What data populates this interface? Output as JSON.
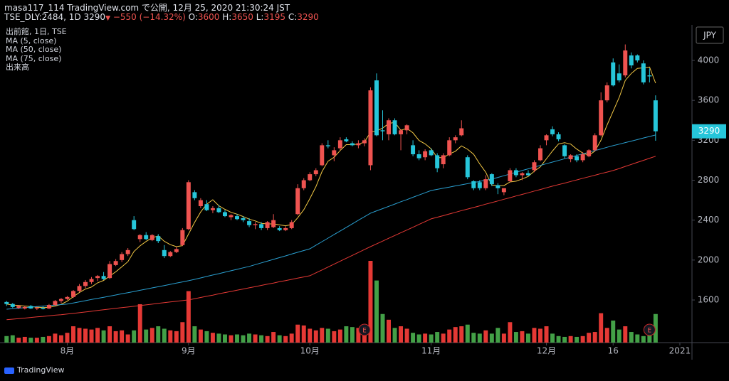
{
  "header": {
    "author": "masa117_114 TradingView.com で公開, 12月 25, 2020 21:30:24 JST",
    "symbol": "TSE_DLY:2484, 1D",
    "direction": "▼",
    "change": "−550 (−14.32%)",
    "ohlc_labels": [
      "O:",
      "H:",
      "L:",
      "C:"
    ]
  },
  "footer": {
    "logo": "TradingView"
  },
  "chart_data": {
    "type": "candlestick",
    "title": "出前館, 1日, TSE",
    "currency": "JPY",
    "grid": false,
    "up_color": "#ef5350",
    "down_color": "#26c6da",
    "ohlc": [
      [
        1580,
        1590,
        1540,
        1560
      ],
      [
        1560,
        1570,
        1520,
        1530
      ],
      [
        1520,
        1550,
        1510,
        1540
      ],
      [
        1515,
        1540,
        1505,
        1530
      ],
      [
        1540,
        1550,
        1510,
        1515
      ],
      [
        1515,
        1530,
        1500,
        1525
      ],
      [
        1520,
        1540,
        1505,
        1510
      ],
      [
        1515,
        1560,
        1510,
        1550
      ],
      [
        1550,
        1600,
        1540,
        1590
      ],
      [
        1590,
        1620,
        1570,
        1610
      ],
      [
        1610,
        1640,
        1600,
        1630
      ],
      [
        1630,
        1700,
        1620,
        1690
      ],
      [
        1690,
        1760,
        1680,
        1740
      ],
      [
        1740,
        1800,
        1720,
        1780
      ],
      [
        1780,
        1830,
        1760,
        1810
      ],
      [
        1820,
        1850,
        1790,
        1840
      ],
      [
        1840,
        1880,
        1800,
        1810
      ],
      [
        1820,
        1990,
        1810,
        1960
      ],
      [
        1950,
        2010,
        1940,
        1990
      ],
      [
        2000,
        2080,
        1980,
        2060
      ],
      [
        2060,
        2120,
        2040,
        2100
      ],
      [
        2400,
        2440,
        2300,
        2310
      ],
      [
        2210,
        2260,
        2180,
        2250
      ],
      [
        2250,
        2280,
        2200,
        2210
      ],
      [
        2200,
        2260,
        2190,
        2250
      ],
      [
        2240,
        2260,
        2170,
        2190
      ],
      [
        2100,
        2150,
        2020,
        2040
      ],
      [
        2040,
        2090,
        2030,
        2080
      ],
      [
        2080,
        2130,
        2070,
        2110
      ],
      [
        2150,
        2320,
        2140,
        2300
      ],
      [
        2310,
        2800,
        2300,
        2780
      ],
      [
        2680,
        2700,
        2600,
        2620
      ],
      [
        2540,
        2620,
        2520,
        2600
      ],
      [
        2560,
        2600,
        2490,
        2500
      ],
      [
        2500,
        2540,
        2470,
        2520
      ],
      [
        2520,
        2550,
        2470,
        2480
      ],
      [
        2480,
        2500,
        2430,
        2440
      ],
      [
        2430,
        2460,
        2400,
        2450
      ],
      [
        2440,
        2460,
        2400,
        2410
      ],
      [
        2420,
        2440,
        2380,
        2400
      ],
      [
        2390,
        2420,
        2330,
        2350
      ],
      [
        2350,
        2380,
        2310,
        2360
      ],
      [
        2360,
        2380,
        2300,
        2320
      ],
      [
        2320,
        2390,
        2300,
        2380
      ],
      [
        2330,
        2460,
        2320,
        2400
      ],
      [
        2320,
        2340,
        2290,
        2300
      ],
      [
        2300,
        2340,
        2290,
        2320
      ],
      [
        2320,
        2400,
        2310,
        2380
      ],
      [
        2460,
        2760,
        2450,
        2720
      ],
      [
        2720,
        2820,
        2700,
        2800
      ],
      [
        2800,
        2880,
        2790,
        2860
      ],
      [
        2860,
        2920,
        2840,
        2900
      ],
      [
        2950,
        3170,
        2940,
        3150
      ],
      [
        3150,
        3200,
        3120,
        3140
      ],
      [
        3050,
        3130,
        2990,
        3100
      ],
      [
        3120,
        3230,
        3100,
        3200
      ],
      [
        3210,
        3230,
        3180,
        3190
      ],
      [
        3170,
        3190,
        3140,
        3150
      ],
      [
        3150,
        3200,
        3120,
        3170
      ],
      [
        3170,
        3220,
        3140,
        3200
      ],
      [
        2950,
        3730,
        2900,
        3700
      ],
      [
        3800,
        3870,
        3240,
        3250
      ],
      [
        3300,
        3500,
        3200,
        3290
      ],
      [
        3260,
        3420,
        3200,
        3400
      ],
      [
        3400,
        3420,
        3250,
        3260
      ],
      [
        3260,
        3310,
        3100,
        3300
      ],
      [
        3300,
        3360,
        3260,
        3350
      ],
      [
        3150,
        3200,
        3040,
        3060
      ],
      [
        3060,
        3100,
        3000,
        3020
      ],
      [
        3030,
        3110,
        3000,
        3090
      ],
      [
        3100,
        3120,
        3040,
        3050
      ],
      [
        3050,
        3070,
        2880,
        2920
      ],
      [
        2960,
        3070,
        2920,
        3050
      ],
      [
        3050,
        3230,
        3040,
        3200
      ],
      [
        3200,
        3250,
        3170,
        3230
      ],
      [
        3250,
        3400,
        3240,
        3320
      ],
      [
        3030,
        3050,
        2810,
        2830
      ],
      [
        2790,
        2800,
        2700,
        2720
      ],
      [
        2780,
        2800,
        2700,
        2720
      ],
      [
        2720,
        2850,
        2700,
        2810
      ],
      [
        2860,
        2870,
        2740,
        2760
      ],
      [
        2750,
        2770,
        2660,
        2720
      ],
      [
        2680,
        2720,
        2650,
        2720
      ],
      [
        2790,
        2920,
        2780,
        2900
      ],
      [
        2900,
        2920,
        2830,
        2850
      ],
      [
        2850,
        2880,
        2800,
        2870
      ],
      [
        2870,
        2900,
        2840,
        2850
      ],
      [
        2900,
        3000,
        2880,
        2980
      ],
      [
        3000,
        3150,
        2990,
        3120
      ],
      [
        3200,
        3260,
        3150,
        3250
      ],
      [
        3310,
        3340,
        3240,
        3260
      ],
      [
        3260,
        3280,
        3190,
        3210
      ],
      [
        3150,
        3160,
        3020,
        3040
      ],
      [
        3010,
        3060,
        2980,
        3050
      ],
      [
        3040,
        3060,
        2980,
        3000
      ],
      [
        3000,
        3080,
        2980,
        3060
      ],
      [
        3040,
        3110,
        3030,
        3100
      ],
      [
        3100,
        3270,
        3090,
        3250
      ],
      [
        3250,
        3680,
        3240,
        3600
      ],
      [
        3600,
        3780,
        3580,
        3750
      ],
      [
        3980,
        4020,
        3740,
        3750
      ],
      [
        3870,
        3960,
        3780,
        3800
      ],
      [
        3850,
        4160,
        3830,
        4100
      ],
      [
        4050,
        4080,
        3920,
        3950
      ],
      [
        4050,
        4060,
        3980,
        4000
      ],
      [
        3970,
        4000,
        3760,
        3780
      ],
      [
        3850,
        3920,
        3780,
        3840
      ],
      [
        3600,
        3650,
        3195,
        3290
      ]
    ],
    "volume": {
      "name": "出来高",
      "up_color": "#e53935",
      "down_color": "#43a047",
      "ylim": [
        0,
        1000
      ],
      "values": [
        80,
        90,
        60,
        70,
        60,
        60,
        70,
        80,
        110,
        90,
        120,
        200,
        180,
        170,
        160,
        180,
        150,
        200,
        140,
        150,
        100,
        150,
        470,
        160,
        180,
        200,
        170,
        150,
        140,
        250,
        630,
        200,
        160,
        140,
        120,
        110,
        100,
        90,
        100,
        90,
        110,
        100,
        90,
        80,
        130,
        90,
        80,
        110,
        220,
        210,
        170,
        150,
        180,
        170,
        140,
        160,
        200,
        190,
        180,
        120,
        1000,
        760,
        350,
        280,
        180,
        200,
        170,
        120,
        100,
        110,
        100,
        130,
        110,
        160,
        190,
        200,
        220,
        120,
        110,
        150,
        110,
        180,
        110,
        250,
        130,
        140,
        110,
        180,
        170,
        200,
        110,
        80,
        70,
        80,
        70,
        80,
        120,
        130,
        360,
        180,
        270,
        160,
        200,
        130,
        100,
        80,
        90,
        350
      ]
    },
    "series": [
      {
        "name": "MA (5, close)",
        "color": "#f2c744",
        "values": [
          1560,
          1550,
          1545,
          1540,
          1535,
          1528,
          1524,
          1526,
          1538,
          1557,
          1588,
          1634,
          1674,
          1710,
          1730,
          1772,
          1796,
          1840,
          1882,
          1932,
          1984,
          2086,
          2142,
          2186,
          2224,
          2242,
          2188,
          2154,
          2134,
          2144,
          2262,
          2378,
          2482,
          2560,
          2604,
          2544,
          2508,
          2478,
          2460,
          2436,
          2410,
          2392,
          2368,
          2362,
          2362,
          2352,
          2344,
          2356,
          2424,
          2504,
          2616,
          2736,
          2886,
          2990,
          3030,
          3098,
          3156,
          3156,
          3162,
          3182,
          3282,
          3294,
          3322,
          3368,
          3380,
          3300,
          3320,
          3274,
          3198,
          3164,
          3114,
          3026,
          3026,
          3062,
          3090,
          3144,
          3110,
          3060,
          2964,
          2880,
          2752,
          2746,
          2746,
          2782,
          2790,
          2812,
          2838,
          2890,
          2934,
          3014,
          3092,
          3164,
          3176,
          3162,
          3112,
          3072,
          3050,
          3092,
          3202,
          3352,
          3490,
          3630,
          3800,
          3870,
          3920,
          3926,
          3934,
          3772
        ]
      },
      {
        "name": "MA (50, close)",
        "color": "#2a9fd0",
        "values": [
          1508,
          1513,
          1518,
          1523,
          1528,
          1534,
          1539,
          1544,
          1549,
          1554,
          1559,
          1570,
          1582,
          1593,
          1605,
          1616,
          1627,
          1639,
          1650,
          1662,
          1673,
          1685,
          1697,
          1709,
          1721,
          1733,
          1745,
          1757,
          1769,
          1781,
          1793,
          1807,
          1821,
          1836,
          1850,
          1864,
          1879,
          1893,
          1907,
          1922,
          1936,
          1954,
          1972,
          1989,
          2007,
          2025,
          2042,
          2060,
          2078,
          2095,
          2113,
          2149,
          2184,
          2220,
          2256,
          2292,
          2327,
          2363,
          2399,
          2434,
          2470,
          2493,
          2515,
          2538,
          2561,
          2584,
          2606,
          2629,
          2652,
          2674,
          2697,
          2708,
          2720,
          2731,
          2743,
          2754,
          2765,
          2777,
          2788,
          2800,
          2811,
          2828,
          2845,
          2862,
          2879,
          2897,
          2914,
          2931,
          2948,
          2965,
          2982,
          2998,
          3015,
          3031,
          3048,
          3064,
          3080,
          3097,
          3113,
          3130,
          3146,
          3161,
          3177,
          3192,
          3207,
          3223,
          3238,
          3253
        ]
      },
      {
        "name": "MA (75, close)",
        "color": "#e53935",
        "values": [
          1402,
          1408,
          1413,
          1419,
          1425,
          1431,
          1436,
          1442,
          1448,
          1453,
          1459,
          1466,
          1473,
          1480,
          1487,
          1495,
          1502,
          1509,
          1516,
          1523,
          1530,
          1537,
          1544,
          1551,
          1558,
          1566,
          1573,
          1580,
          1587,
          1594,
          1601,
          1613,
          1625,
          1637,
          1649,
          1662,
          1674,
          1686,
          1698,
          1710,
          1722,
          1734,
          1746,
          1758,
          1770,
          1783,
          1795,
          1807,
          1819,
          1831,
          1843,
          1872,
          1901,
          1930,
          1959,
          1989,
          2018,
          2047,
          2076,
          2105,
          2134,
          2162,
          2190,
          2218,
          2246,
          2274,
          2301,
          2329,
          2357,
          2385,
          2413,
          2429,
          2445,
          2462,
          2478,
          2495,
          2511,
          2527,
          2543,
          2560,
          2576,
          2592,
          2609,
          2625,
          2642,
          2658,
          2674,
          2691,
          2707,
          2724,
          2740,
          2756,
          2771,
          2787,
          2803,
          2819,
          2834,
          2850,
          2866,
          2881,
          2897,
          2917,
          2938,
          2958,
          2979,
          2999,
          3020,
          3040
        ]
      }
    ],
    "earnings": {
      "label": "E",
      "indices": [
        59,
        106
      ]
    },
    "xlim": [
      -0.5,
      113
    ],
    "xticks": [
      {
        "value": 10,
        "label": "8月"
      },
      {
        "value": 30,
        "label": "9月"
      },
      {
        "value": 50,
        "label": "10月"
      },
      {
        "value": 70,
        "label": "11月"
      },
      {
        "value": 89,
        "label": "12月"
      },
      {
        "value": 100,
        "label": "16"
      },
      {
        "value": 111,
        "label": "2021"
      }
    ],
    "ylim": [
      1173,
      4356
    ],
    "yticks": [
      1600,
      2000,
      2400,
      2800,
      3200,
      3600,
      4000
    ]
  }
}
